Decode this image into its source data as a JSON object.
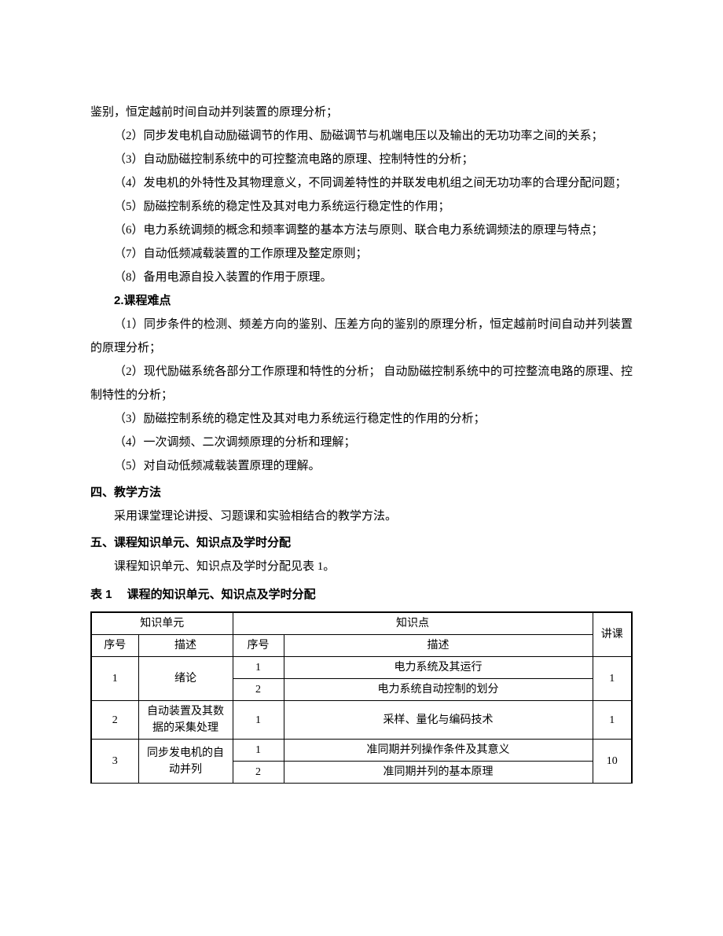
{
  "paragraphs": {
    "p1": "鉴别，恒定越前时间自动并列装置的原理分析；",
    "p2": "（2）同步发电机自动励磁调节的作用、励磁调节与机端电压以及输出的无功功率之间的关系；",
    "p3": "（3）自动励磁控制系统中的可控整流电路的原理、控制特性的分析；",
    "p4": "（4）发电机的外特性及其物理意义，不同调差特性的并联发电机组之间无功功率的合理分配问题；",
    "p5": "（5）励磁控制系统的稳定性及其对电力系统运行稳定性的作用；",
    "p6": "（6）电力系统调频的概念和频率调整的基本方法与原则、联合电力系统调频法的原理与特点；",
    "p7": "（7）自动低频减载装置的工作原理及整定原则；",
    "p8": "（8）备用电源自投入装置的作用于原理。",
    "subsection2": "2.课程难点",
    "d1": "（1）同步条件的检测、频差方向的鉴别、压差方向的鉴别的原理分析，恒定越前时间自动并列装置的原理分析；",
    "d2": "（2）现代励磁系统各部分工作原理和特性的分析； 自动励磁控制系统中的可控整流电路的原理、控制特性的分析；",
    "d3": "（3）励磁控制系统的稳定性及其对电力系统运行稳定性的作用的分析；",
    "d4": "（4）一次调频、二次调频原理的分析和理解；",
    "d5": "（5）对自动低频减载装置原理的理解。",
    "section4": "四、教学方法",
    "s4p1": "采用课堂理论讲授、习题课和实验相结合的教学方法。",
    "section5": "五、课程知识单元、知识点及学时分配",
    "s5p1": "课程知识单元、知识点及学时分配见表 1。",
    "tableCaption": "表 1　 课程的知识单元、知识点及学时分配"
  },
  "table": {
    "headers": {
      "unit": "知识单元",
      "point": "知识点",
      "hours": "讲课",
      "seq": "序号",
      "desc": "描述"
    },
    "rows": [
      {
        "unitSeq": "1",
        "unitDesc": "绪论",
        "hours": "1",
        "points": [
          {
            "seq": "1",
            "desc": "电力系统及其运行"
          },
          {
            "seq": "2",
            "desc": "电力系统自动控制的划分"
          }
        ]
      },
      {
        "unitSeq": "2",
        "unitDesc": "自动装置及其数据的采集处理",
        "hours": "1",
        "points": [
          {
            "seq": "1",
            "desc": "采样、量化与编码技术"
          }
        ]
      },
      {
        "unitSeq": "3",
        "unitDesc": "同步发电机的自动并列",
        "hours": "10",
        "points": [
          {
            "seq": "1",
            "desc": "准同期并列操作条件及其意义"
          },
          {
            "seq": "2",
            "desc": "准同期并列的基本原理"
          }
        ]
      }
    ]
  }
}
